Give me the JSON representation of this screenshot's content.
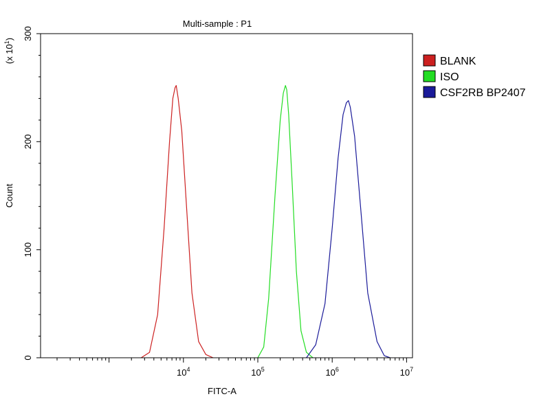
{
  "chart_data": {
    "type": "line",
    "title": "Multi-sample : P1",
    "xlabel": "FITC-A",
    "ylabel": "Count",
    "y_multiplier": "(x 10",
    "y_multiplier_exp": "1",
    "y_multiplier_close": ")",
    "x_scale": "log",
    "xlim": [
      120,
      12000000
    ],
    "ylim": [
      0,
      300
    ],
    "x_ticks": [
      {
        "value": 10000,
        "base": "10",
        "exp": "4"
      },
      {
        "value": 100000,
        "base": "10",
        "exp": "5"
      },
      {
        "value": 1000000,
        "base": "10",
        "exp": "6"
      },
      {
        "value": 10000000,
        "base": "10",
        "exp": "7"
      }
    ],
    "y_ticks": [
      {
        "value": 0,
        "label": "0"
      },
      {
        "value": 100,
        "label": "100"
      },
      {
        "value": 200,
        "label": "200"
      },
      {
        "value": 300,
        "label": "300"
      }
    ],
    "legend_position": "top-right",
    "series": [
      {
        "name": "BLANK",
        "color": "#cc2020",
        "x": [
          2700,
          3500,
          4500,
          5500,
          6500,
          7200,
          7700,
          8000,
          8500,
          9500,
          11000,
          13000,
          16000,
          20000,
          25000
        ],
        "y": [
          0,
          5,
          40,
          120,
          200,
          240,
          250,
          252,
          240,
          210,
          140,
          60,
          15,
          3,
          0
        ]
      },
      {
        "name": "ISO",
        "color": "#22dd22",
        "x": [
          100000,
          120000,
          140000,
          170000,
          200000,
          220000,
          235000,
          245000,
          260000,
          290000,
          330000,
          380000,
          450000,
          550000
        ],
        "y": [
          0,
          10,
          55,
          150,
          220,
          245,
          252,
          248,
          225,
          160,
          80,
          25,
          5,
          0
        ]
      },
      {
        "name": "CSF2RB BP2407",
        "color": "#1a1a99",
        "x": [
          450000,
          600000,
          800000,
          1000000,
          1200000,
          1400000,
          1550000,
          1650000,
          1750000,
          2000000,
          2400000,
          3000000,
          4000000,
          5000000,
          6000000
        ],
        "y": [
          0,
          12,
          50,
          120,
          185,
          225,
          236,
          238,
          232,
          205,
          140,
          60,
          15,
          2,
          0
        ]
      }
    ]
  }
}
